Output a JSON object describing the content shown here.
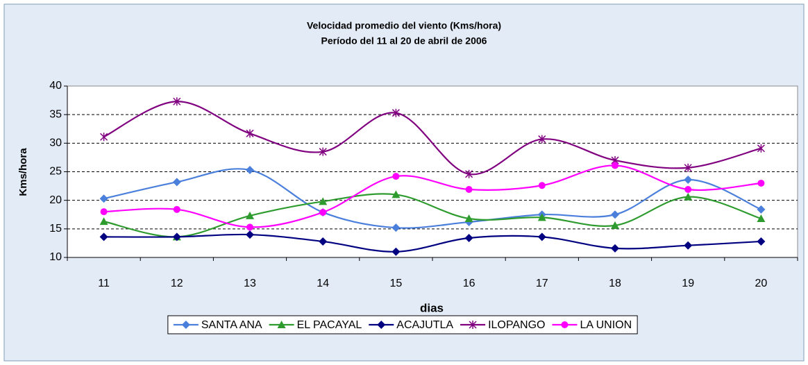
{
  "chart_data": {
    "type": "line",
    "title": "Velocidad promedio del viento (Kms/hora)",
    "subtitle": "Período del 11 al 20 de abril de 2006",
    "x_label": "dias",
    "y_label": "Kms/hora",
    "categories": [
      "11",
      "12",
      "13",
      "14",
      "15",
      "16",
      "17",
      "18",
      "19",
      "20"
    ],
    "series": [
      {
        "name": "SANTA ANA",
        "color": "#4a7fdc",
        "marker": "diamond",
        "values": [
          20.3,
          23.2,
          25.3,
          17.9,
          15.2,
          16.2,
          17.5,
          17.5,
          23.6,
          18.4
        ]
      },
      {
        "name": "EL PACAYAL",
        "color": "#2e9b2e",
        "marker": "triangle",
        "values": [
          16.3,
          13.6,
          17.3,
          19.8,
          21.0,
          16.8,
          17.0,
          15.6,
          20.6,
          16.8
        ]
      },
      {
        "name": "ACAJUTLA",
        "color": "#000080",
        "marker": "diamond",
        "values": [
          13.6,
          13.6,
          14.0,
          12.8,
          11.0,
          13.4,
          13.6,
          11.6,
          12.1,
          12.8
        ]
      },
      {
        "name": "ILOPANGO",
        "color": "#800080",
        "marker": "asterisk",
        "values": [
          31.1,
          37.3,
          31.7,
          28.5,
          35.3,
          24.6,
          30.7,
          27.0,
          25.7,
          29.1
        ]
      },
      {
        "name": "LA UNION",
        "color": "#ff00ff",
        "marker": "circle",
        "values": [
          18.0,
          18.4,
          15.3,
          17.9,
          24.2,
          21.9,
          22.6,
          26.1,
          21.9,
          23.0
        ]
      }
    ],
    "ylim": [
      10,
      40
    ],
    "yticks": [
      10,
      15,
      20,
      25,
      30,
      35,
      40
    ],
    "grid": true,
    "legend": "bottom",
    "smooth": true
  }
}
